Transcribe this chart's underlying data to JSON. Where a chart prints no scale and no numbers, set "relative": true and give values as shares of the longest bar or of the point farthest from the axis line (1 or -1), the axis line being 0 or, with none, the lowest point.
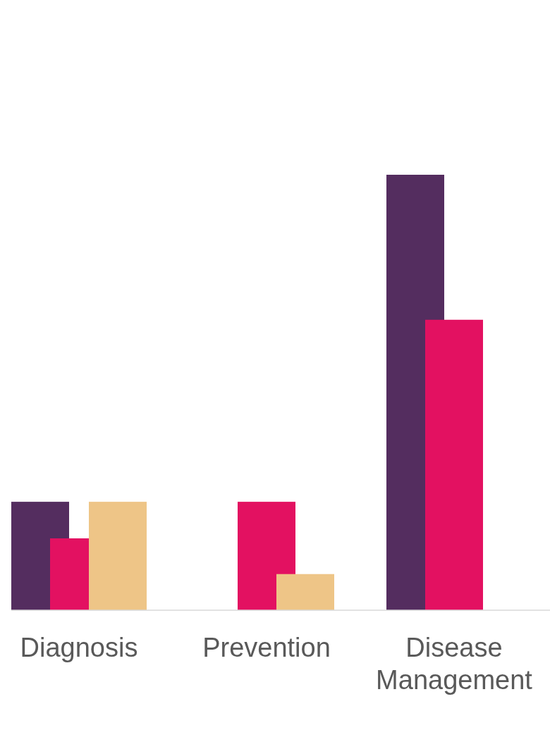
{
  "chart_data": {
    "type": "bar",
    "relative": true,
    "categories": [
      "Diagnosis",
      "Prevention",
      "Disease Management"
    ],
    "series": [
      {
        "color": "#542d5f",
        "values": [
          0.249,
          null,
          1
        ]
      },
      {
        "color": "#e31161",
        "values": [
          0.165,
          0.249,
          0.667
        ]
      },
      {
        "color": "#eec587",
        "values": [
          0.249,
          0.083,
          null
        ]
      }
    ]
  }
}
